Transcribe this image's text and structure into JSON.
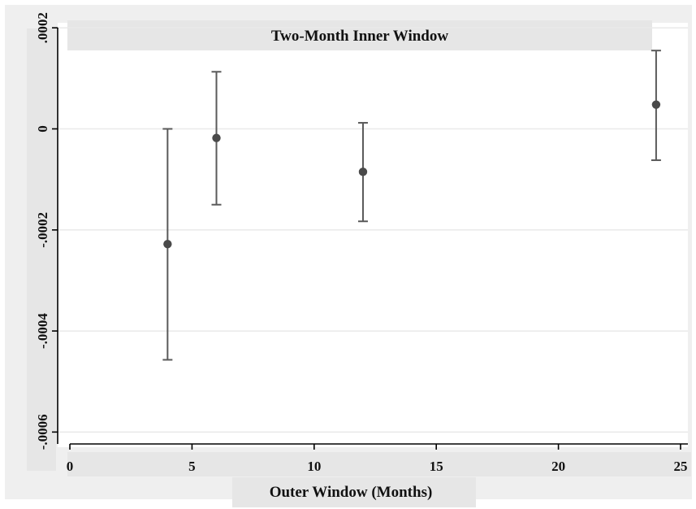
{
  "chart_data": {
    "type": "scatter",
    "title": "Two-Month Inner Window",
    "xlabel": "Outer Window (Months)",
    "ylabel": "",
    "xlim": [
      -0.5,
      25.3
    ],
    "ylim": [
      -0.00063,
      0.00021
    ],
    "x_ticks": [
      0,
      5,
      10,
      15,
      20,
      25
    ],
    "x_tick_labels": [
      "0",
      "5",
      "10",
      "15",
      "20",
      "25"
    ],
    "y_ticks": [
      0.0002,
      0,
      -0.0002,
      -0.0004,
      -0.0006
    ],
    "y_tick_labels": [
      ".0002",
      "0",
      "-.0002",
      "-.0004",
      "-.0006"
    ],
    "grid": true,
    "points": [
      {
        "x": 4,
        "y": -0.000228,
        "lower": -0.000457,
        "upper": 0.0
      },
      {
        "x": 6,
        "y": -1.8e-05,
        "lower": -0.00015,
        "upper": 0.000113
      },
      {
        "x": 12,
        "y": -8.5e-05,
        "lower": -0.000183,
        "upper": 1.2e-05
      },
      {
        "x": 24,
        "y": 4.8e-05,
        "lower": -6.2e-05,
        "upper": 0.000155
      }
    ],
    "colors": {
      "background": "#efefef",
      "plot": "#ffffff",
      "strip": "#e6e6e6",
      "marker": "#4a4a4a",
      "errorbar": "#5a5a5a",
      "grid": "#e9e9e9"
    }
  }
}
